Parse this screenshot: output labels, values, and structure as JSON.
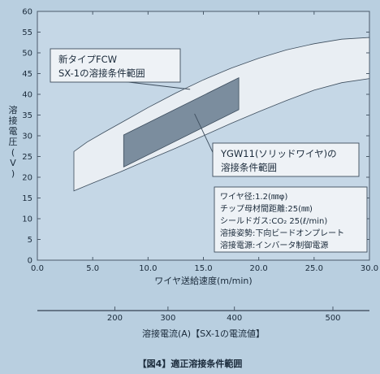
{
  "chart_data": {
    "type": "area",
    "title": "",
    "caption": "【図4】適正溶接条件範囲",
    "xlabel": "ワイヤ送給速度(m/min)",
    "ylabel": "溶接電圧(V)",
    "xlim": [
      0,
      30
    ],
    "ylim": [
      0,
      60
    ],
    "xticks": [
      "0.0",
      "5.0",
      "10.0",
      "15.0",
      "20.0",
      "25.0",
      "30.0"
    ],
    "yticks": [
      "0",
      "5",
      "10",
      "15",
      "20",
      "25",
      "30",
      "35",
      "40",
      "45",
      "50",
      "55",
      "60"
    ],
    "grid": false,
    "series": [
      {
        "name": "新タイプFCW SX-1の溶接条件範囲",
        "color": "#e9eef3",
        "polygon": [
          [
            3.3,
            26.2
          ],
          [
            4.5,
            28.5
          ],
          [
            6,
            30.8
          ],
          [
            8,
            33.8
          ],
          [
            10,
            36.8
          ],
          [
            12.5,
            40.3
          ],
          [
            15,
            43.5
          ],
          [
            17.5,
            46.3
          ],
          [
            20,
            48.7
          ],
          [
            22.5,
            50.7
          ],
          [
            25,
            52.2
          ],
          [
            27.5,
            53.3
          ],
          [
            30,
            53.7
          ],
          [
            30,
            43.8
          ],
          [
            27.5,
            42.8
          ],
          [
            25,
            41
          ],
          [
            22.5,
            38.5
          ],
          [
            20,
            35.8
          ],
          [
            17.5,
            33
          ],
          [
            15,
            30
          ],
          [
            12.5,
            27
          ],
          [
            10,
            24.2
          ],
          [
            7.5,
            21.3
          ],
          [
            5,
            18.6
          ],
          [
            3.3,
            16.7
          ]
        ]
      },
      {
        "name": "YGW11(ソリッドワイヤ)の溶接条件範囲",
        "color": "#7b8d9e",
        "polygon": [
          [
            7.8,
            30.2
          ],
          [
            18.2,
            44
          ],
          [
            18.2,
            36.3
          ],
          [
            7.8,
            22.5
          ]
        ]
      }
    ],
    "callouts": [
      {
        "lines": [
          "新タイプFCW",
          "SX-1の溶接条件範囲"
        ]
      },
      {
        "lines": [
          "YGW11(ソリッドワイヤ)の",
          "溶接条件範囲"
        ]
      }
    ],
    "conditions": [
      "ワイヤ径:1.2(㎜φ)",
      "チップ母材間距離:25(㎜)",
      "シールドガス:CO₂ 25(ℓ/min)",
      "溶接姿勢:下向ビードオンプレート",
      "溶接電源:インバータ制御電源"
    ],
    "secondary_axis": {
      "label": "溶接電流(A)【SX-1の電流値】",
      "ticks": [
        "200",
        "300",
        "400",
        "500"
      ],
      "tick_x": [
        7.0,
        11.8,
        17.8,
        26.7
      ]
    }
  }
}
